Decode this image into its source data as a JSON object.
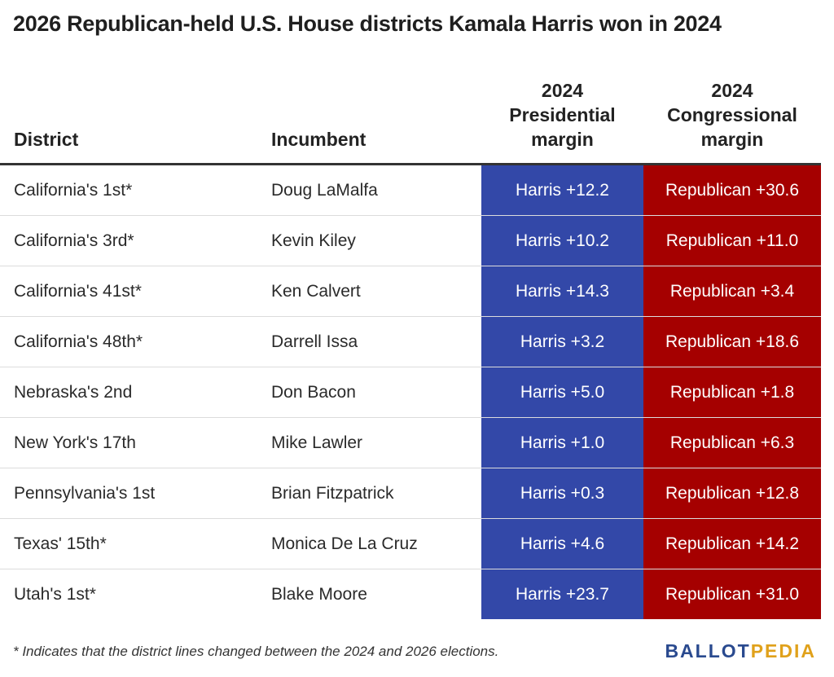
{
  "title": "2026 Republican-held U.S. House districts Kamala Harris won in 2024",
  "colors": {
    "presidential_fill": "#3348a8",
    "congressional_fill": "#a50000",
    "logo_primary": "#2a4a8f",
    "logo_accent": "#e0a11b"
  },
  "chart_data": {
    "type": "table",
    "columns": [
      "District",
      "Incumbent",
      "2024\nPresidential\nmargin",
      "2024\nCongressional\nmargin"
    ],
    "rows": [
      {
        "district": "California's 1st*",
        "incumbent": "Doug LaMalfa",
        "presidential": "Harris +12.2",
        "congressional": "Republican +30.6"
      },
      {
        "district": "California's 3rd*",
        "incumbent": "Kevin Kiley",
        "presidential": "Harris +10.2",
        "congressional": "Republican +11.0"
      },
      {
        "district": "California's 41st*",
        "incumbent": "Ken Calvert",
        "presidential": "Harris +14.3",
        "congressional": "Republican +3.4"
      },
      {
        "district": "California's 48th*",
        "incumbent": "Darrell Issa",
        "presidential": "Harris +3.2",
        "congressional": "Republican +18.6"
      },
      {
        "district": "Nebraska's 2nd",
        "incumbent": "Don Bacon",
        "presidential": "Harris +5.0",
        "congressional": "Republican +1.8"
      },
      {
        "district": "New York's 17th",
        "incumbent": "Mike Lawler",
        "presidential": "Harris +1.0",
        "congressional": "Republican +6.3"
      },
      {
        "district": "Pennsylvania's 1st",
        "incumbent": "Brian Fitzpatrick",
        "presidential": "Harris +0.3",
        "congressional": "Republican +12.8"
      },
      {
        "district": "Texas' 15th*",
        "incumbent": "Monica De La Cruz",
        "presidential": "Harris +4.6",
        "congressional": "Republican +14.2"
      },
      {
        "district": "Utah's 1st*",
        "incumbent": "Blake Moore",
        "presidential": "Harris +23.7",
        "congressional": "Republican +31.0"
      }
    ]
  },
  "footnote": "* Indicates that the district lines changed between the 2024 and 2026 elections.",
  "logo": {
    "part1": "BALLOT",
    "part2": "PEDIA"
  }
}
